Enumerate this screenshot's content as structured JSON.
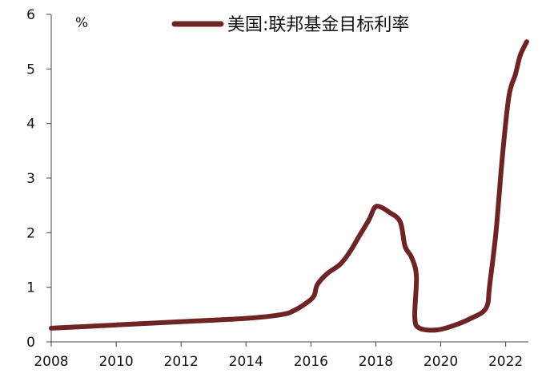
{
  "chart_data": {
    "type": "line",
    "unit_label": "%",
    "x_ticks": [
      "2008",
      "2010",
      "2012",
      "2014",
      "2016",
      "2018",
      "2020",
      "2022"
    ],
    "y_ticks": [
      "0",
      "1",
      "2",
      "3",
      "4",
      "5",
      "6"
    ],
    "xlim": [
      2008,
      2022.7
    ],
    "ylim": [
      0,
      6
    ],
    "grid": false,
    "legend_position": "top",
    "series": [
      {
        "name": "美国:联邦基金目标利率",
        "color": "#6e2424",
        "points": [
          [
            2008.0,
            0.25
          ],
          [
            2010.0,
            0.31
          ],
          [
            2012.0,
            0.37
          ],
          [
            2014.0,
            0.43
          ],
          [
            2015.1,
            0.5
          ],
          [
            2015.5,
            0.58
          ],
          [
            2015.9,
            0.73
          ],
          [
            2016.1,
            0.85
          ],
          [
            2016.2,
            1.05
          ],
          [
            2016.5,
            1.25
          ],
          [
            2016.9,
            1.42
          ],
          [
            2017.2,
            1.65
          ],
          [
            2017.5,
            1.95
          ],
          [
            2017.8,
            2.25
          ],
          [
            2017.95,
            2.45
          ],
          [
            2018.1,
            2.48
          ],
          [
            2018.4,
            2.38
          ],
          [
            2018.75,
            2.2
          ],
          [
            2018.9,
            1.75
          ],
          [
            2019.1,
            1.55
          ],
          [
            2019.25,
            1.2
          ],
          [
            2019.2,
            0.45
          ],
          [
            2019.35,
            0.25
          ],
          [
            2019.9,
            0.22
          ],
          [
            2020.5,
            0.32
          ],
          [
            2021.0,
            0.45
          ],
          [
            2021.3,
            0.55
          ],
          [
            2021.45,
            0.7
          ],
          [
            2021.5,
            1.0
          ],
          [
            2021.7,
            2.0
          ],
          [
            2021.9,
            3.4
          ],
          [
            2022.1,
            4.5
          ],
          [
            2022.3,
            4.9
          ],
          [
            2022.45,
            5.25
          ],
          [
            2022.65,
            5.5
          ]
        ]
      }
    ]
  }
}
